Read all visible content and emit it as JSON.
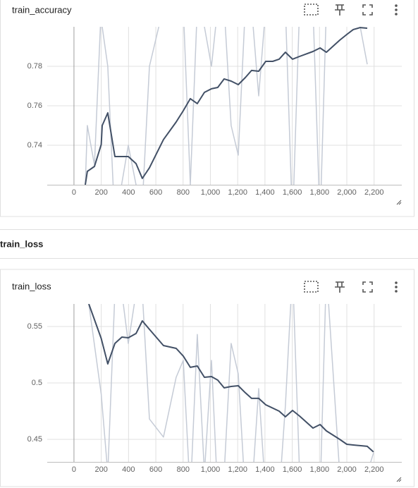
{
  "section_title": "train_loss",
  "chart_data": [
    {
      "type": "line",
      "title": "train_accuracy",
      "x": [
        83,
        98,
        150,
        200,
        207,
        248,
        300,
        398,
        455,
        501,
        553,
        656,
        749,
        801,
        853,
        904,
        956,
        1008,
        1054,
        1101,
        1152,
        1204,
        1256,
        1302,
        1354,
        1406,
        1457,
        1504,
        1550,
        1602,
        1654,
        1752,
        1804,
        1850,
        1948,
        2000,
        2047,
        2098,
        2150
      ],
      "series": [
        {
          "color": "#c5cbd6",
          "values": [
            0.72,
            0.75,
            0.73,
            0.81,
            0.8,
            0.78,
            0.7,
            0.74,
            0.72,
            0.71,
            0.78,
            0.81,
            0.81,
            0.81,
            0.72,
            0.81,
            0.8,
            0.78,
            0.81,
            0.81,
            0.75,
            0.735,
            0.81,
            0.81,
            0.765,
            0.81,
            0.81,
            0.81,
            0.81,
            0.7,
            0.81,
            0.81,
            0.7,
            0.81,
            0.81,
            0.81,
            0.81,
            0.8,
            0.781
          ]
        },
        {
          "color": "#425066",
          "values": [
            0.72,
            0.7268,
            0.7293,
            0.7404,
            0.75,
            0.7564,
            0.7343,
            0.7343,
            0.7307,
            0.7232,
            0.7286,
            0.7429,
            0.7518,
            0.7575,
            0.7636,
            0.7611,
            0.7668,
            0.7686,
            0.7693,
            0.7736,
            0.7725,
            0.7707,
            0.7743,
            0.7779,
            0.7775,
            0.7825,
            0.7825,
            0.7836,
            0.7871,
            0.7836,
            0.785,
            0.7875,
            0.7893,
            0.7871,
            0.7932,
            0.7961,
            0.7986,
            0.7996,
            0.7993
          ]
        }
      ],
      "xlim": [
        -196,
        2403
      ],
      "xticks": [
        0,
        200,
        400,
        600,
        800,
        {
          "value": 1000,
          "label": "1,000"
        },
        {
          "value": 1200,
          "label": "1,200"
        },
        {
          "value": 1400,
          "label": "1,400"
        },
        {
          "value": 1600,
          "label": "1,600"
        },
        {
          "value": 1800,
          "label": "1,800"
        },
        {
          "value": 2000,
          "label": "2,000"
        },
        {
          "value": 2200,
          "label": "2,200"
        }
      ],
      "ylim": [
        0.72,
        0.8
      ],
      "yticks": [
        0.74,
        0.76,
        0.78
      ],
      "grid": true
    },
    {
      "type": "line",
      "title": "train_loss",
      "x": [
        109,
        200,
        248,
        300,
        351,
        398,
        455,
        501,
        553,
        656,
        749,
        801,
        853,
        904,
        956,
        1008,
        1054,
        1101,
        1152,
        1204,
        1256,
        1302,
        1354,
        1406,
        1504,
        1550,
        1602,
        1654,
        1752,
        1804,
        1850,
        1948,
        2000,
        2047,
        2150,
        2196
      ],
      "series": [
        {
          "color": "#c5cbd6",
          "values": [
            0.57,
            0.49,
            0.42,
            0.58,
            0.58,
            0.535,
            0.58,
            0.58,
            0.468,
            0.452,
            0.505,
            0.52,
            0.4,
            0.543,
            0.42,
            0.52,
            0.4,
            0.42,
            0.535,
            0.508,
            0.4,
            0.4,
            0.495,
            0.4,
            0.4,
            0.48,
            0.6,
            0.42,
            0.4,
            0.4,
            0.6,
            0.42,
            0.42,
            0.42,
            0.42,
            0.438
          ]
        },
        {
          "color": "#425066",
          "values": [
            0.57,
            0.5394,
            0.5169,
            0.535,
            0.5406,
            0.54,
            0.5438,
            0.555,
            0.5475,
            0.5331,
            0.5306,
            0.5238,
            0.5138,
            0.515,
            0.505,
            0.5056,
            0.5025,
            0.4956,
            0.4969,
            0.4975,
            0.4913,
            0.4863,
            0.4863,
            0.4806,
            0.475,
            0.47,
            0.4756,
            0.4706,
            0.46,
            0.4631,
            0.4575,
            0.45,
            0.4456,
            0.445,
            0.4438,
            0.4388
          ]
        }
      ],
      "xlim": [
        -196,
        2403
      ],
      "xticks": [
        0,
        200,
        400,
        600,
        800,
        {
          "value": 1000,
          "label": "1,000"
        },
        {
          "value": 1200,
          "label": "1,200"
        },
        {
          "value": 1400,
          "label": "1,400"
        },
        {
          "value": 1600,
          "label": "1,600"
        },
        {
          "value": 1800,
          "label": "1,800"
        },
        {
          "value": 2000,
          "label": "2,000"
        },
        {
          "value": 2200,
          "label": "2,200"
        }
      ],
      "ylim": [
        0.43,
        0.57
      ],
      "yticks": [
        0.45,
        0.5,
        0.55
      ],
      "grid": true
    }
  ]
}
